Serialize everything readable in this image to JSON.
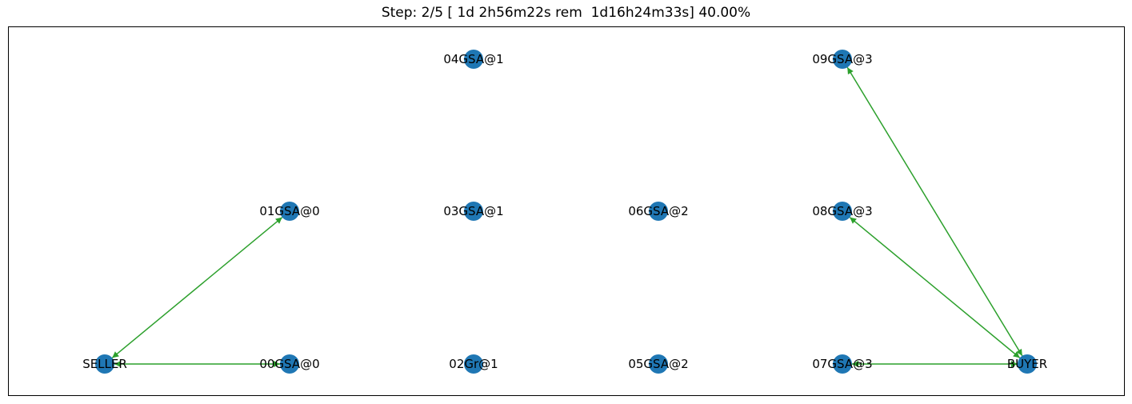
{
  "title": "Step: 2/5 [ 1d 2h56m22s rem  1d16h24m33s] 40.00%",
  "colors": {
    "node": "#1f77b4",
    "edge": "#2ca02c",
    "frame": "#000000",
    "label": "#000000"
  },
  "graph": {
    "nodes": [
      {
        "id": "SELLER",
        "label": "SELLER"
      },
      {
        "id": "00GSA@0",
        "label": "00GSA@0"
      },
      {
        "id": "01GSA@0",
        "label": "01GSA@0"
      },
      {
        "id": "02Gr@1",
        "label": "02Gr@1"
      },
      {
        "id": "03GSA@1",
        "label": "03GSA@1"
      },
      {
        "id": "04GSA@1",
        "label": "04GSA@1"
      },
      {
        "id": "05GSA@2",
        "label": "05GSA@2"
      },
      {
        "id": "06GSA@2",
        "label": "06GSA@2"
      },
      {
        "id": "07GSA@3",
        "label": "07GSA@3"
      },
      {
        "id": "08GSA@3",
        "label": "08GSA@3"
      },
      {
        "id": "09GSA@3",
        "label": "09GSA@3"
      },
      {
        "id": "BUYER",
        "label": "BUYER"
      }
    ],
    "edges": [
      {
        "source": "SELLER",
        "target": "01GSA@0",
        "direction": "both"
      },
      {
        "source": "SELLER",
        "target": "00GSA@0",
        "direction": "both"
      },
      {
        "source": "07GSA@3",
        "target": "BUYER",
        "direction": "both"
      },
      {
        "source": "08GSA@3",
        "target": "BUYER",
        "direction": "both"
      },
      {
        "source": "09GSA@3",
        "target": "BUYER",
        "direction": "both"
      }
    ]
  }
}
